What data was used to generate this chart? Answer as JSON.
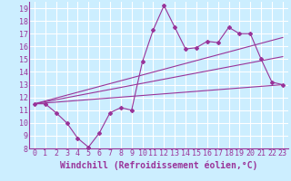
{
  "xlabel": "Windchill (Refroidissement éolien,°C)",
  "bg_color": "#cceeff",
  "grid_color": "#ffffff",
  "line_color": "#993399",
  "xlim": [
    -0.5,
    23.5
  ],
  "ylim": [
    8,
    19.5
  ],
  "xticks": [
    0,
    1,
    2,
    3,
    4,
    5,
    6,
    7,
    8,
    9,
    10,
    11,
    12,
    13,
    14,
    15,
    16,
    17,
    18,
    19,
    20,
    21,
    22,
    23
  ],
  "yticks": [
    8,
    9,
    10,
    11,
    12,
    13,
    14,
    15,
    16,
    17,
    18,
    19
  ],
  "line1_x": [
    0,
    1,
    2,
    3,
    4,
    5,
    6,
    7,
    8,
    9,
    10,
    11,
    12,
    13,
    14,
    15,
    16,
    17,
    18,
    19,
    20,
    21,
    22,
    23
  ],
  "line1_y": [
    11.5,
    11.5,
    10.8,
    10.0,
    8.8,
    8.1,
    9.2,
    10.8,
    11.2,
    11.0,
    14.8,
    17.3,
    19.2,
    17.5,
    15.8,
    15.9,
    16.4,
    16.3,
    17.5,
    17.0,
    17.0,
    15.0,
    13.2,
    13.0
  ],
  "line2_x": [
    0,
    23
  ],
  "line2_y": [
    11.5,
    13.0
  ],
  "line3_x": [
    0,
    23
  ],
  "line3_y": [
    11.5,
    16.7
  ],
  "line4_x": [
    0,
    23
  ],
  "line4_y": [
    11.5,
    15.2
  ],
  "font_color": "#993399",
  "tick_fontsize": 6,
  "label_fontsize": 7
}
